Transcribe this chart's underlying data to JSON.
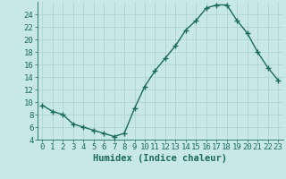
{
  "x": [
    0,
    1,
    2,
    3,
    4,
    5,
    6,
    7,
    8,
    9,
    10,
    11,
    12,
    13,
    14,
    15,
    16,
    17,
    18,
    19,
    20,
    21,
    22,
    23
  ],
  "y": [
    9.5,
    8.5,
    8.0,
    6.5,
    6.0,
    5.5,
    5.0,
    4.5,
    5.0,
    9.0,
    12.5,
    15.0,
    17.0,
    19.0,
    21.5,
    23.0,
    25.0,
    25.5,
    25.5,
    23.0,
    21.0,
    18.0,
    15.5,
    13.5
  ],
  "line_color": "#1a6b5a",
  "marker": "+",
  "bg_color": "#c8e8e8",
  "grid_color": "#b0d4d4",
  "xlabel": "Humidex (Indice chaleur)",
  "ylim": [
    4,
    26
  ],
  "xlim": [
    -0.5,
    23.5
  ],
  "yticks": [
    4,
    6,
    8,
    10,
    12,
    14,
    16,
    18,
    20,
    22,
    24
  ],
  "xticks": [
    0,
    1,
    2,
    3,
    4,
    5,
    6,
    7,
    8,
    9,
    10,
    11,
    12,
    13,
    14,
    15,
    16,
    17,
    18,
    19,
    20,
    21,
    22,
    23
  ],
  "xlabel_fontsize": 7.5,
  "tick_fontsize": 6.5,
  "line_width": 1.0,
  "marker_size": 4
}
